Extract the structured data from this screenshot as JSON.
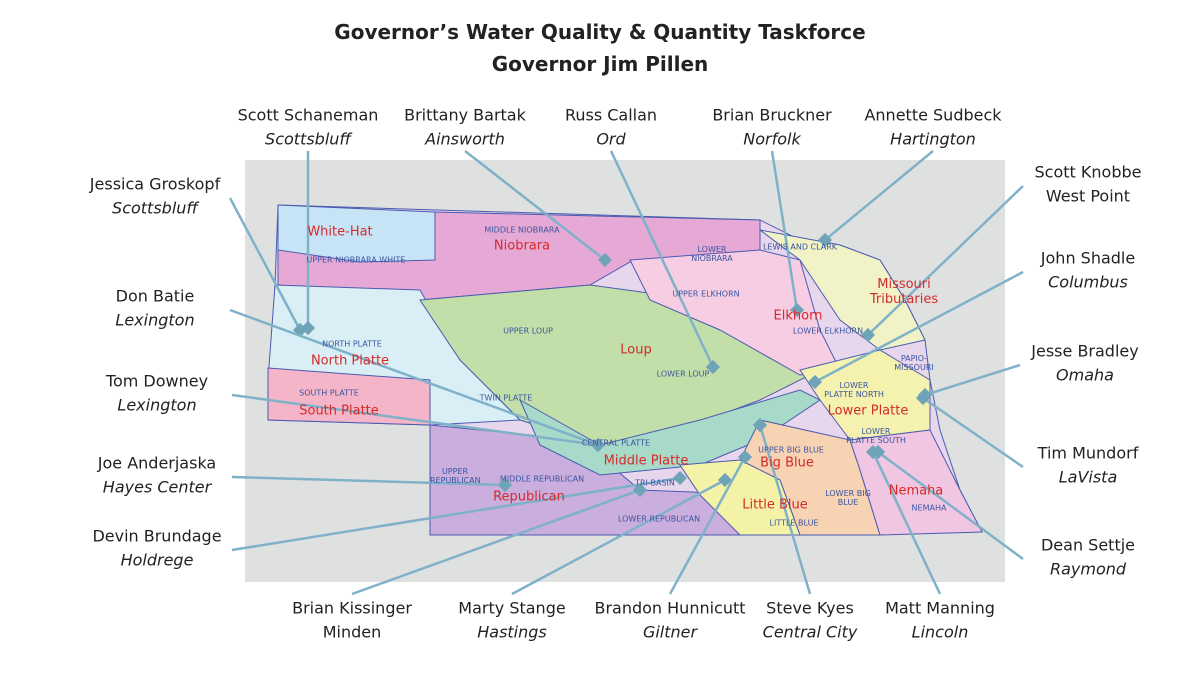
{
  "header": {
    "title": "Governor’s Water Quality & Quantity Taskforce",
    "subtitle": "Governor Jim Pillen"
  },
  "members": [
    {
      "name": "Scott Schaneman",
      "city": "Scottsbluff"
    },
    {
      "name": "Brittany Bartak",
      "city": "Ainsworth"
    },
    {
      "name": "Russ Callan",
      "city": "Ord"
    },
    {
      "name": "Brian Bruckner",
      "city": "Norfolk"
    },
    {
      "name": "Annette Sudbeck",
      "city": "Hartington"
    },
    {
      "name": "Jessica Groskopf",
      "city": "Scottsbluff"
    },
    {
      "name": "Scott Knobbe",
      "city": "West Point"
    },
    {
      "name": "Don Batie",
      "city": "Lexington"
    },
    {
      "name": "John Shadle",
      "city": "Columbus"
    },
    {
      "name": "Tom Downey",
      "city": "Lexington"
    },
    {
      "name": "Jesse Bradley",
      "city": "Omaha"
    },
    {
      "name": "Joe Anderjaska",
      "city": "Hayes Center"
    },
    {
      "name": "Tim Mundorf",
      "city": "LaVista"
    },
    {
      "name": "Devin Brundage",
      "city": "Holdrege"
    },
    {
      "name": "Dean Settje",
      "city": "Raymond"
    },
    {
      "name": "Brian Kissinger",
      "city": "Minden"
    },
    {
      "name": "Marty Stange",
      "city": "Hastings"
    },
    {
      "name": "Brandon Hunnicutt",
      "city": "Giltner"
    },
    {
      "name": "Steve Kyes",
      "city": "Central City"
    },
    {
      "name": "Matt Manning",
      "city": "Lincoln"
    }
  ],
  "districts": [
    "White-Hat",
    "Niobrara",
    "Elkhorn",
    "Missouri Tributaries",
    "North Platte",
    "Loup",
    "South Platte",
    "Middle Platte",
    "Lower Platte",
    "Big Blue",
    "Republican",
    "Little Blue",
    "Nemaha"
  ],
  "basins": [
    "UPPER NIOBRARA WHITE",
    "MIDDLE NIOBRARA",
    "LOWER NIOBRARA",
    "LEWIS AND CLARK",
    "UPPER ELKHORN",
    "LOWER ELKHORN",
    "UPPER LOUP",
    "NORTH PLATTE",
    "LOWER LOUP",
    "PAPIO-MISSOURI",
    "LOWER PLATTE NORTH",
    "TWIN PLATTE",
    "SOUTH PLATTE",
    "CENTRAL PLATTE",
    "LOWER PLATTE SOUTH",
    "UPPER BIG BLUE",
    "UPPER REPUBLICAN",
    "MIDDLE REPUBLICAN",
    "TRI-BASIN",
    "LOWER BIG BLUE",
    "NEMAHA",
    "LOWER REPUBLICAN",
    "LITTLE BLUE"
  ]
}
